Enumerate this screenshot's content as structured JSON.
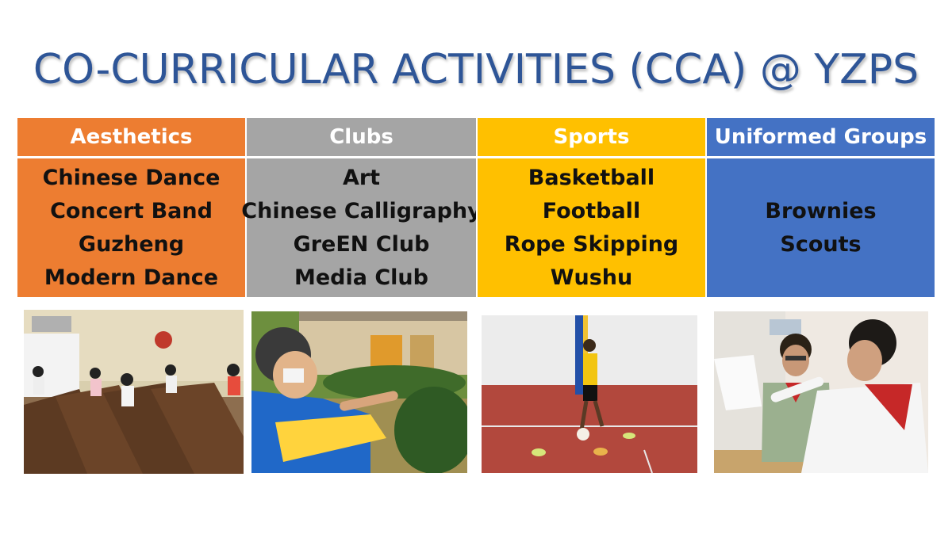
{
  "title": "CO-CURRICULAR ACTIVITIES (CCA) @ YZPS",
  "colors": {
    "title": "#2e5597",
    "aesthetics": "#ed7d31",
    "clubs": "#a5a5a5",
    "sports": "#ffc000",
    "uniformed": "#4472c4"
  },
  "categories": [
    {
      "header": "Aesthetics",
      "items": [
        "Chinese Dance",
        "Concert Band",
        "Guzheng",
        "Modern Dance"
      ]
    },
    {
      "header": "Clubs",
      "items": [
        "Art",
        "Chinese Calligraphy",
        "GreEN Club",
        "Media Club"
      ]
    },
    {
      "header": "Sports",
      "items": [
        "Basketball",
        "Football",
        "Rope Skipping",
        "Wushu"
      ]
    },
    {
      "header": "Uniformed Groups",
      "items": [
        "Brownies",
        "Scouts"
      ]
    }
  ],
  "photos": [
    {
      "icon": "guzheng-class-photo"
    },
    {
      "icon": "garden-club-photo"
    },
    {
      "icon": "football-practice-photo"
    },
    {
      "icon": "scouts-photo"
    }
  ]
}
